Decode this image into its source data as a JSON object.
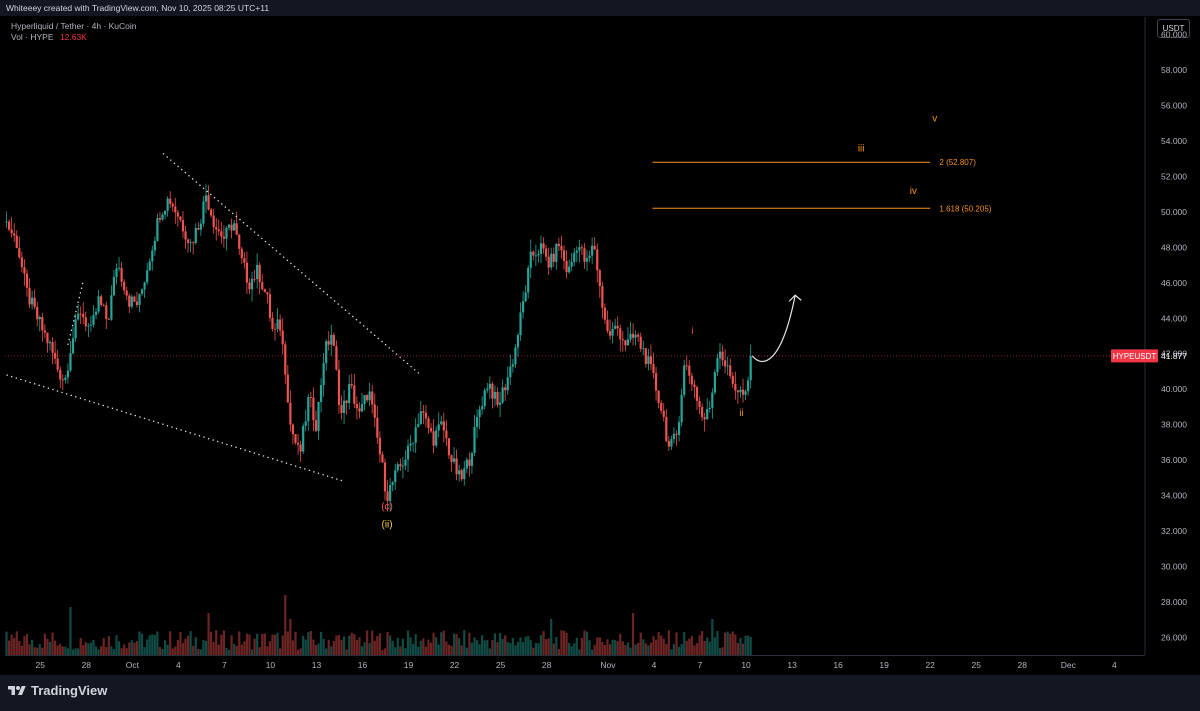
{
  "header": {
    "credit": "Whiteeey created with TradingView.com, Nov 10, 2025 08:25 UTC+11",
    "symbol_line": "Hyperliquid / Tether · 4h · KuCoin",
    "vol_label": "Vol · HYPE",
    "vol_value": "12.63K",
    "currency": "USDT"
  },
  "footer": {
    "brand": "TradingView"
  },
  "colors": {
    "up": "#26a69a",
    "down": "#ef5350",
    "accent": "#f7931a",
    "price_label": "#f23645"
  },
  "chart_data": {
    "type": "candlestick",
    "symbol": "HYPEUSDT",
    "timeframe": "4h",
    "ylim": [
      25,
      61
    ],
    "y_ticks": [
      "60.000",
      "58.000",
      "56.000",
      "54.000",
      "52.000",
      "50.000",
      "48.000",
      "46.000",
      "44.000",
      "42.000",
      "40.000",
      "38.000",
      "36.000",
      "34.000",
      "32.000",
      "30.000",
      "28.000",
      "26.000"
    ],
    "y_tick_values": [
      60,
      58,
      56,
      54,
      52,
      50,
      48,
      46,
      44,
      42,
      40,
      38,
      36,
      34,
      32,
      30,
      28,
      26
    ],
    "x_ticks": [
      {
        "label": "25",
        "day": 0
      },
      {
        "label": "28",
        "day": 3
      },
      {
        "label": "Oct",
        "day": 6
      },
      {
        "label": "4",
        "day": 9
      },
      {
        "label": "7",
        "day": 12
      },
      {
        "label": "10",
        "day": 15
      },
      {
        "label": "13",
        "day": 18
      },
      {
        "label": "16",
        "day": 21
      },
      {
        "label": "19",
        "day": 24
      },
      {
        "label": "22",
        "day": 27
      },
      {
        "label": "25",
        "day": 30
      },
      {
        "label": "28",
        "day": 33
      },
      {
        "label": "Nov",
        "day": 37
      },
      {
        "label": "4",
        "day": 40
      },
      {
        "label": "7",
        "day": 43
      },
      {
        "label": "10",
        "day": 46
      },
      {
        "label": "13",
        "day": 49
      },
      {
        "label": "16",
        "day": 52
      },
      {
        "label": "19",
        "day": 55
      },
      {
        "label": "22",
        "day": 58
      },
      {
        "label": "25",
        "day": 61
      },
      {
        "label": "28",
        "day": 64
      },
      {
        "label": "Dec",
        "day": 67
      },
      {
        "label": "4",
        "day": 70
      }
    ],
    "x_range_days": [
      -2.3,
      72
    ],
    "current_price": {
      "symbol": "HYPEUSDT",
      "value": 41.877,
      "label": "41.877"
    },
    "price_path": [
      [
        -2.2,
        49.4
      ],
      [
        -1.5,
        48.2
      ],
      [
        -0.9,
        45.5
      ],
      [
        -0.2,
        44.0
      ],
      [
        0.6,
        42.5
      ],
      [
        1.2,
        41.0
      ],
      [
        1.6,
        40.5
      ],
      [
        2.0,
        42.5
      ],
      [
        2.6,
        44.5
      ],
      [
        3.3,
        43.2
      ],
      [
        3.8,
        45.0
      ],
      [
        4.4,
        43.8
      ],
      [
        5.0,
        47.2
      ],
      [
        5.8,
        45.0
      ],
      [
        6.4,
        44.8
      ],
      [
        7.0,
        47.0
      ],
      [
        7.8,
        50.0
      ],
      [
        8.4,
        50.8
      ],
      [
        9.0,
        49.8
      ],
      [
        9.8,
        48.2
      ],
      [
        10.4,
        49.5
      ],
      [
        10.8,
        51.0
      ],
      [
        11.4,
        49.2
      ],
      [
        12.0,
        48.5
      ],
      [
        12.6,
        49.5
      ],
      [
        13.0,
        47.5
      ],
      [
        13.6,
        46.0
      ],
      [
        14.2,
        46.7
      ],
      [
        14.8,
        45.0
      ],
      [
        15.2,
        43.0
      ],
      [
        15.6,
        43.8
      ],
      [
        16.0,
        41.0
      ],
      [
        16.3,
        38.0
      ],
      [
        16.9,
        36.2
      ],
      [
        17.5,
        39.5
      ],
      [
        18.0,
        38.0
      ],
      [
        18.5,
        42.0
      ],
      [
        19.0,
        43.2
      ],
      [
        19.6,
        38.5
      ],
      [
        20.2,
        40.2
      ],
      [
        20.8,
        38.5
      ],
      [
        21.4,
        40.0
      ],
      [
        22.0,
        37.0
      ],
      [
        22.6,
        34.0
      ],
      [
        23.2,
        35.2
      ],
      [
        24.0,
        36.5
      ],
      [
        24.8,
        38.8
      ],
      [
        25.6,
        37.2
      ],
      [
        26.2,
        38.0
      ],
      [
        26.8,
        36.0
      ],
      [
        27.4,
        34.8
      ],
      [
        28.0,
        36.2
      ],
      [
        28.6,
        38.8
      ],
      [
        29.2,
        40.5
      ],
      [
        29.8,
        39.0
      ],
      [
        30.4,
        40.5
      ],
      [
        30.9,
        42.0
      ],
      [
        31.4,
        44.5
      ],
      [
        32.0,
        47.5
      ],
      [
        32.6,
        48.0
      ],
      [
        33.2,
        47.0
      ],
      [
        33.8,
        48.2
      ],
      [
        34.4,
        46.5
      ],
      [
        35.0,
        48.3
      ],
      [
        35.6,
        47.0
      ],
      [
        36.1,
        48.2
      ],
      [
        36.5,
        45.5
      ],
      [
        37.0,
        43.0
      ],
      [
        37.6,
        43.5
      ],
      [
        38.2,
        42.5
      ],
      [
        38.8,
        43.0
      ],
      [
        39.4,
        42.0
      ],
      [
        40.0,
        40.5
      ],
      [
        40.6,
        38.5
      ],
      [
        41.0,
        36.5
      ],
      [
        41.5,
        37.5
      ],
      [
        42.0,
        41.5
      ],
      [
        42.6,
        40.2
      ],
      [
        43.2,
        38.2
      ],
      [
        43.6,
        38.8
      ],
      [
        44.2,
        42.5
      ],
      [
        44.8,
        41.0
      ],
      [
        45.4,
        40.0
      ],
      [
        46.0,
        39.5
      ],
      [
        46.4,
        41.877
      ]
    ],
    "volume_spikes": [
      [
        2.0,
        8
      ],
      [
        10.9,
        7
      ],
      [
        15.9,
        10
      ],
      [
        16.3,
        6
      ],
      [
        33.3,
        6
      ],
      [
        38.6,
        7
      ],
      [
        43.8,
        6
      ]
    ],
    "fib_levels": [
      {
        "ratio": "2",
        "price": 52.807,
        "label": "2 (52.807)"
      },
      {
        "ratio": "1.618",
        "price": 50.205,
        "label": "1.618 (50.205)"
      }
    ],
    "wave_labels": [
      {
        "text": "(c)",
        "day": 22.6,
        "price": 33.2,
        "color": "#ef5350"
      },
      {
        "text": "(ii)",
        "day": 22.6,
        "price": 32.2,
        "color": "#f7c948"
      },
      {
        "text": "i",
        "day": 42.5,
        "price": 43.1,
        "color": "#ef5350"
      },
      {
        "text": "ii",
        "day": 45.7,
        "price": 38.5,
        "color": "#f7931a"
      },
      {
        "text": "iii",
        "day": 53.5,
        "price": 53.4,
        "color": "#f7931a"
      },
      {
        "text": "iv",
        "day": 56.9,
        "price": 51.0,
        "color": "#f7931a"
      },
      {
        "text": "v",
        "day": 58.3,
        "price": 55.1,
        "color": "#f7931a"
      }
    ],
    "trendlines": [
      {
        "name": "upper-wedge-line",
        "from": [
          8.0,
          53.3
        ],
        "to": [
          24.8,
          40.8
        ]
      },
      {
        "name": "lower-wedge-line",
        "from": [
          -2.2,
          40.8
        ],
        "to": [
          19.8,
          34.8
        ]
      },
      {
        "name": "small-trendline",
        "from": [
          1.8,
          42.5
        ],
        "to": [
          2.8,
          46.1
        ]
      }
    ],
    "projection": {
      "from": [
        46.4,
        41.877
      ],
      "to": [
        49.2,
        45.3
      ]
    }
  }
}
